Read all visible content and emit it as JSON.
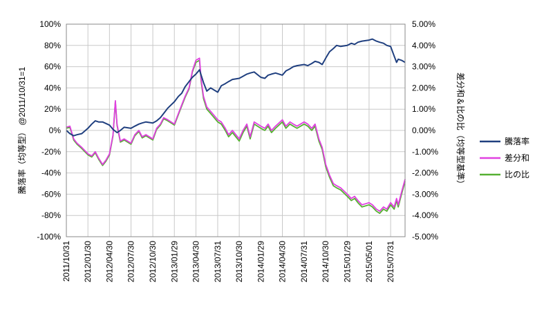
{
  "chart_data": {
    "type": "line",
    "title": "",
    "ylabel": "騰落率（均等型） @2011/10/31=1",
    "y2label": "差分和＆比の比（均等型基準）",
    "ylim": [
      -100,
      100
    ],
    "y2lim": [
      -5.0,
      5.0
    ],
    "y_ticks": [
      "100%",
      "80%",
      "60%",
      "40%",
      "20%",
      "0%",
      "-20%",
      "-40%",
      "-60%",
      "-80%",
      "-100%"
    ],
    "y2_ticks": [
      "5.00%",
      "4.00%",
      "3.00%",
      "2.00%",
      "1.00%",
      "0.00%",
      "-1.00%",
      "-2.00%",
      "-3.00%",
      "-4.00%",
      "-5.00%"
    ],
    "x_ticks": [
      "2011/10/31",
      "2012/01/30",
      "2012/04/30",
      "2012/07/30",
      "2012/10/30",
      "2013/01/29",
      "2013/04/30",
      "2013/07/31",
      "2013/10/30",
      "2014/01/29",
      "2014/04/30",
      "2014/07/31",
      "2014/10/30",
      "2015/01/29",
      "2015/05/01",
      "2015/07/31"
    ],
    "grid": true,
    "legend_position": "right",
    "series": [
      {
        "name": "騰落率",
        "axis": "left",
        "color": "#1f3f7f",
        "x": [
          "2011/10/31",
          "2011/11/15",
          "2011/12/01",
          "2011/12/15",
          "2012/01/04",
          "2012/01/30",
          "2012/02/15",
          "2012/03/01",
          "2012/03/15",
          "2012/04/01",
          "2012/04/30",
          "2012/05/15",
          "2012/06/01",
          "2012/06/15",
          "2012/07/01",
          "2012/07/30",
          "2012/08/15",
          "2012/09/01",
          "2012/09/15",
          "2012/10/01",
          "2012/10/30",
          "2012/11/15",
          "2012/12/01",
          "2012/12/15",
          "2013/01/01",
          "2013/01/29",
          "2013/02/15",
          "2013/03/01",
          "2013/03/15",
          "2013/04/01",
          "2013/04/15",
          "2013/04/30",
          "2013/05/15",
          "2013/05/22",
          "2013/06/01",
          "2013/06/15",
          "2013/07/01",
          "2013/07/31",
          "2013/08/15",
          "2013/09/01",
          "2013/09/15",
          "2013/10/01",
          "2013/10/30",
          "2013/11/15",
          "2013/12/01",
          "2013/12/15",
          "2014/01/01",
          "2014/01/29",
          "2014/02/15",
          "2014/03/01",
          "2014/03/15",
          "2014/04/01",
          "2014/04/30",
          "2014/05/15",
          "2014/06/01",
          "2014/06/15",
          "2014/07/01",
          "2014/07/31",
          "2014/08/15",
          "2014/09/01",
          "2014/09/15",
          "2014/10/01",
          "2014/10/15",
          "2014/10/30",
          "2014/11/15",
          "2014/12/01",
          "2014/12/15",
          "2015/01/01",
          "2015/01/29",
          "2015/02/15",
          "2015/03/01",
          "2015/03/15",
          "2015/04/01",
          "2015/05/01",
          "2015/05/15",
          "2015/06/01",
          "2015/06/15",
          "2015/07/01",
          "2015/07/15",
          "2015/07/31",
          "2015/08/15",
          "2015/08/25",
          "2015/09/01",
          "2015/09/15",
          "2015/09/30"
        ],
        "values": [
          0,
          -3,
          -5,
          -4,
          -3,
          2,
          6,
          9,
          8,
          8,
          5,
          1,
          -2,
          0,
          3,
          2,
          4,
          6,
          7,
          8,
          7,
          9,
          12,
          16,
          21,
          27,
          32,
          35,
          41,
          46,
          50,
          53,
          57,
          52,
          45,
          37,
          40,
          36,
          42,
          44,
          46,
          48,
          49,
          51,
          53,
          54,
          55,
          50,
          49,
          52,
          53,
          54,
          52,
          56,
          58,
          60,
          61,
          62,
          61,
          63,
          65,
          64,
          62,
          68,
          74,
          77,
          80,
          79,
          80,
          82,
          81,
          83,
          84,
          85,
          86,
          84,
          83,
          82,
          80,
          79,
          70,
          64,
          67,
          66,
          64
        ]
      },
      {
        "name": "差分和",
        "axis": "right",
        "color": "#e040e0",
        "x": [
          "2011/10/31",
          "2011/11/15",
          "2011/12/01",
          "2011/12/15",
          "2012/01/04",
          "2012/01/30",
          "2012/02/15",
          "2012/03/01",
          "2012/03/15",
          "2012/04/01",
          "2012/04/15",
          "2012/04/30",
          "2012/05/15",
          "2012/05/25",
          "2012/06/01",
          "2012/06/15",
          "2012/07/01",
          "2012/07/30",
          "2012/08/15",
          "2012/09/01",
          "2012/09/15",
          "2012/10/01",
          "2012/10/30",
          "2012/11/15",
          "2012/12/01",
          "2012/12/15",
          "2013/01/01",
          "2013/01/29",
          "2013/02/15",
          "2013/03/01",
          "2013/03/15",
          "2013/04/01",
          "2013/04/15",
          "2013/04/30",
          "2013/05/15",
          "2013/05/22",
          "2013/06/01",
          "2013/06/15",
          "2013/07/01",
          "2013/07/31",
          "2013/08/15",
          "2013/09/01",
          "2013/09/15",
          "2013/10/01",
          "2013/10/30",
          "2013/11/15",
          "2013/12/01",
          "2013/12/15",
          "2014/01/01",
          "2014/01/29",
          "2014/02/15",
          "2014/03/01",
          "2014/03/15",
          "2014/04/01",
          "2014/04/30",
          "2014/05/15",
          "2014/06/01",
          "2014/06/15",
          "2014/07/01",
          "2014/07/31",
          "2014/08/15",
          "2014/09/01",
          "2014/09/15",
          "2014/10/01",
          "2014/10/15",
          "2014/10/30",
          "2014/11/15",
          "2014/12/01",
          "2014/12/15",
          "2015/01/01",
          "2015/01/29",
          "2015/02/15",
          "2015/03/01",
          "2015/03/15",
          "2015/04/01",
          "2015/05/01",
          "2015/05/15",
          "2015/06/01",
          "2015/06/15",
          "2015/07/01",
          "2015/07/15",
          "2015/07/31",
          "2015/08/15",
          "2015/08/25",
          "2015/09/01",
          "2015/09/15",
          "2015/09/30"
        ],
        "values": [
          0.15,
          0.2,
          -0.4,
          -0.6,
          -0.8,
          -1.1,
          -1.2,
          -1.0,
          -1.3,
          -1.6,
          -1.4,
          -1.1,
          -0.2,
          1.4,
          0.3,
          -0.5,
          -0.4,
          -0.6,
          -0.2,
          0.0,
          -0.3,
          -0.2,
          -0.4,
          0.1,
          0.3,
          0.6,
          0.5,
          0.3,
          0.8,
          1.2,
          1.6,
          2.0,
          2.8,
          3.3,
          3.4,
          2.4,
          1.6,
          1.1,
          0.9,
          0.5,
          0.4,
          0.1,
          -0.2,
          0.0,
          -0.4,
          0.0,
          0.3,
          -0.3,
          0.4,
          0.2,
          0.1,
          0.3,
          0.0,
          0.2,
          0.5,
          0.2,
          0.4,
          0.3,
          0.2,
          0.4,
          0.3,
          0.1,
          0.3,
          -0.4,
          -0.8,
          -1.6,
          -2.1,
          -2.5,
          -2.6,
          -2.7,
          -3.0,
          -3.2,
          -3.1,
          -3.3,
          -3.5,
          -3.4,
          -3.5,
          -3.7,
          -3.8,
          -3.6,
          -3.7,
          -3.4,
          -3.6,
          -3.2,
          -3.5,
          -2.9,
          -2.3
        ]
      },
      {
        "name": "比の比",
        "axis": "right",
        "color": "#55b031",
        "x": [
          "2011/10/31",
          "2011/11/15",
          "2011/12/01",
          "2011/12/15",
          "2012/01/04",
          "2012/01/30",
          "2012/02/15",
          "2012/03/01",
          "2012/03/15",
          "2012/04/01",
          "2012/04/15",
          "2012/04/30",
          "2012/05/15",
          "2012/05/25",
          "2012/06/01",
          "2012/06/15",
          "2012/07/01",
          "2012/07/30",
          "2012/08/15",
          "2012/09/01",
          "2012/09/15",
          "2012/10/01",
          "2012/10/30",
          "2012/11/15",
          "2012/12/01",
          "2012/12/15",
          "2013/01/01",
          "2013/01/29",
          "2013/02/15",
          "2013/03/01",
          "2013/03/15",
          "2013/04/01",
          "2013/04/15",
          "2013/04/30",
          "2013/05/15",
          "2013/05/22",
          "2013/06/01",
          "2013/06/15",
          "2013/07/01",
          "2013/07/31",
          "2013/08/15",
          "2013/09/01",
          "2013/09/15",
          "2013/10/01",
          "2013/10/30",
          "2013/11/15",
          "2013/12/01",
          "2013/12/15",
          "2014/01/01",
          "2014/01/29",
          "2014/02/15",
          "2014/03/01",
          "2014/03/15",
          "2014/04/01",
          "2014/04/30",
          "2014/05/15",
          "2014/06/01",
          "2014/06/15",
          "2014/07/01",
          "2014/07/31",
          "2014/08/15",
          "2014/09/01",
          "2014/09/15",
          "2014/10/01",
          "2014/10/15",
          "2014/10/30",
          "2014/11/15",
          "2014/12/01",
          "2014/12/15",
          "2015/01/01",
          "2015/01/29",
          "2015/02/15",
          "2015/03/01",
          "2015/03/15",
          "2015/04/01",
          "2015/05/01",
          "2015/05/15",
          "2015/06/01",
          "2015/06/15",
          "2015/07/01",
          "2015/07/15",
          "2015/07/31",
          "2015/08/15",
          "2015/08/25",
          "2015/09/01",
          "2015/09/15",
          "2015/09/30"
        ],
        "values": [
          0.1,
          0.15,
          -0.45,
          -0.65,
          -0.85,
          -1.15,
          -1.25,
          -1.05,
          -1.35,
          -1.65,
          -1.45,
          -1.15,
          -0.25,
          1.35,
          0.25,
          -0.55,
          -0.45,
          -0.65,
          -0.25,
          -0.05,
          -0.35,
          -0.25,
          -0.45,
          0.05,
          0.25,
          0.55,
          0.45,
          0.25,
          0.75,
          1.15,
          1.55,
          1.95,
          2.75,
          3.2,
          3.3,
          2.3,
          1.5,
          1.0,
          0.8,
          0.4,
          0.3,
          0.0,
          -0.3,
          -0.1,
          -0.5,
          -0.1,
          0.2,
          -0.4,
          0.3,
          0.1,
          0.0,
          0.2,
          -0.1,
          0.1,
          0.4,
          0.1,
          0.3,
          0.2,
          0.1,
          0.3,
          0.2,
          0.0,
          0.2,
          -0.5,
          -0.9,
          -1.7,
          -2.2,
          -2.6,
          -2.7,
          -2.8,
          -3.1,
          -3.3,
          -3.2,
          -3.4,
          -3.6,
          -3.5,
          -3.6,
          -3.8,
          -3.9,
          -3.7,
          -3.8,
          -3.5,
          -3.7,
          -3.3,
          -3.6,
          -3.0,
          -2.4
        ]
      }
    ]
  }
}
